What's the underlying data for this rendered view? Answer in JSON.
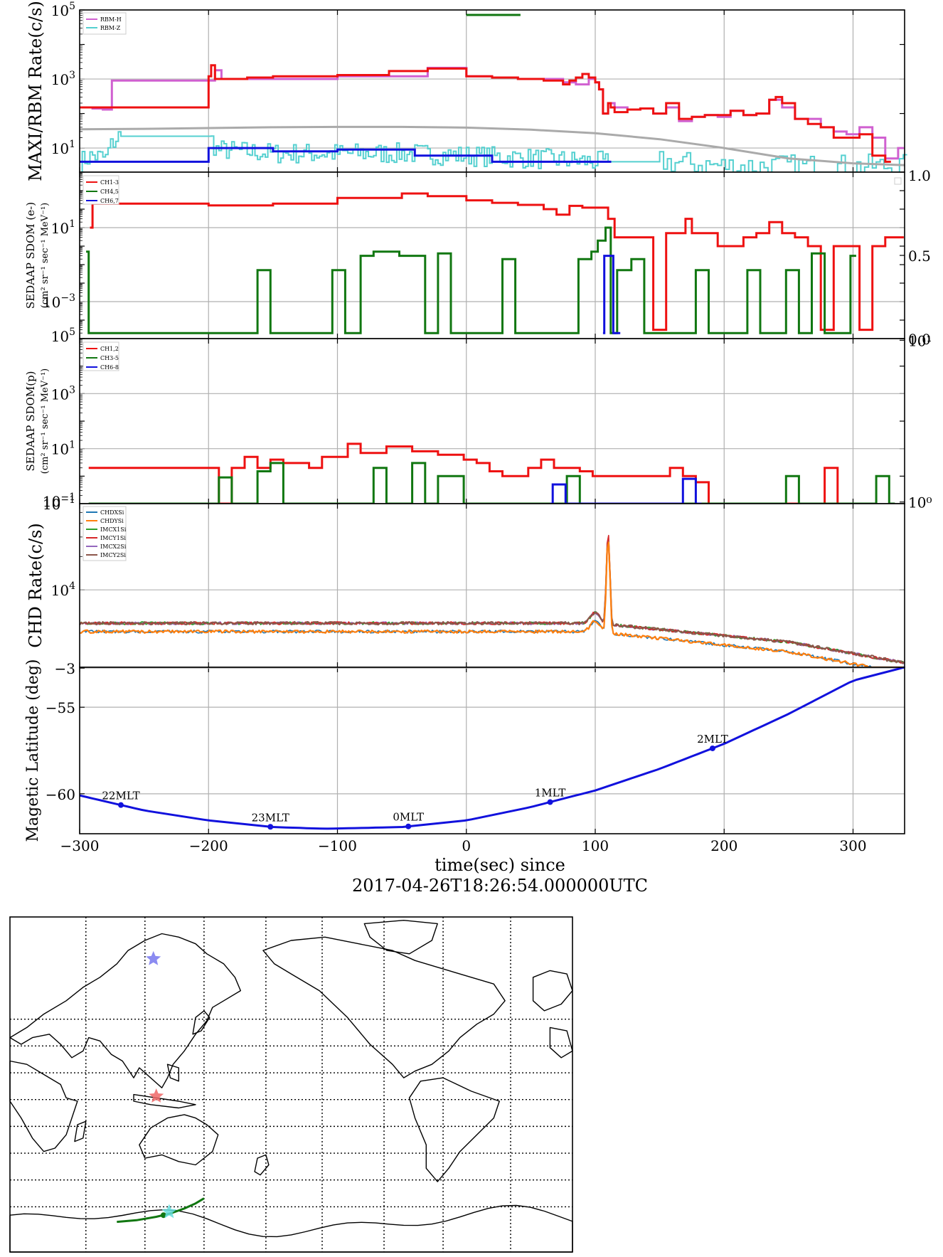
{
  "x_axis": {
    "range": [
      -300,
      340
    ],
    "ticks": [
      -300,
      -200,
      -100,
      0,
      100,
      200,
      300
    ],
    "tick_labels": [
      "−300",
      "−200",
      "−100",
      "0",
      "100",
      "200",
      "300"
    ],
    "label": "time(sec) since",
    "label2": "2017-04-26T18:26:54.000000UTC"
  },
  "colors": {
    "red": "#ee1111",
    "green": "#117711",
    "blue": "#1111dd",
    "violet": "#d060d0",
    "cyan": "#55d0d0",
    "gray": "#aaaaaa",
    "grid": "#b0b0b0"
  },
  "chart_data": [
    {
      "name": "rbm",
      "type": "line",
      "ylabel": "MAXI/RBM Rate(c/s)",
      "scale": "log",
      "ylim": [
        2,
        100000
      ],
      "yticks": [
        {
          "base": "10",
          "exp": "1"
        },
        {
          "base": "10",
          "exp": "3"
        },
        {
          "base": "10",
          "exp": "5"
        }
      ],
      "right_tick_label": "1.0",
      "legend": [
        "RBM-H",
        "RBM-Z"
      ],
      "bar": {
        "x": [
          0,
          42
        ],
        "color": "green"
      },
      "series": [
        {
          "name": "RBM-H",
          "color": "violet",
          "x": [
            -300,
            -290,
            -280,
            -282,
            -280,
            -275,
            -270,
            -250,
            -200,
            -195,
            -190,
            -100,
            -30,
            0,
            20,
            40,
            60,
            75,
            85,
            95,
            100,
            103,
            106,
            110,
            115,
            125,
            135,
            145,
            155,
            165,
            175,
            185,
            195,
            205,
            215,
            225,
            235,
            245,
            255,
            265,
            275,
            285,
            295,
            305,
            315,
            325,
            335
          ],
          "y": [
            150,
            140,
            130,
            150,
            130,
            900,
            900,
            900,
            900,
            1800,
            1000,
            1200,
            2100,
            1200,
            1100,
            1000,
            1000,
            800,
            700,
            1000,
            800,
            500,
            100,
            200,
            150,
            130,
            140,
            100,
            150,
            60,
            80,
            90,
            80,
            120,
            90,
            100,
            250,
            150,
            70,
            70,
            40,
            30,
            25,
            40,
            20,
            5,
            10
          ]
        },
        {
          "name": "RBM-Z",
          "color": "cyan",
          "noise": true,
          "x": [
            -300,
            -290,
            -280,
            -270,
            -250,
            -200,
            -195,
            -150,
            -100,
            -50,
            0,
            50,
            100,
            150,
            200,
            250,
            300,
            340
          ],
          "y": [
            4,
            6,
            5,
            22,
            22,
            22,
            9,
            7,
            7,
            7,
            6,
            5,
            4,
            4,
            3,
            3,
            3,
            3
          ]
        },
        {
          "name": "",
          "color": "red",
          "x": [
            -300,
            -205,
            -200,
            -198,
            -195,
            -190,
            -170,
            -150,
            -100,
            -60,
            -30,
            0,
            20,
            40,
            60,
            75,
            80,
            85,
            90,
            95,
            100,
            103,
            106,
            110,
            112,
            115,
            125,
            135,
            145,
            155,
            165,
            175,
            185,
            195,
            205,
            215,
            225,
            235,
            240,
            245,
            255,
            265,
            275,
            285,
            295,
            305,
            315,
            325
          ],
          "y": [
            150,
            150,
            1200,
            2500,
            1000,
            1000,
            1100,
            1200,
            1300,
            1700,
            2000,
            1200,
            1100,
            1000,
            900,
            700,
            900,
            1100,
            1400,
            1100,
            800,
            500,
            100,
            200,
            150,
            110,
            130,
            140,
            100,
            200,
            70,
            80,
            90,
            90,
            120,
            90,
            100,
            250,
            300,
            200,
            70,
            50,
            40,
            20,
            20,
            25,
            6,
            4
          ]
        },
        {
          "name": "",
          "color": "blue",
          "x": [
            -300,
            -205,
            -200,
            -150,
            -100,
            -50,
            -40,
            0,
            20,
            60,
            100,
            108
          ],
          "y": [
            4,
            4,
            10,
            8,
            9,
            9,
            6,
            6,
            4,
            4,
            4,
            4
          ]
        },
        {
          "name": "",
          "color": "gray",
          "x": [
            -300,
            -250,
            -200,
            -150,
            -100,
            -50,
            0,
            50,
            100,
            150,
            200,
            250,
            300,
            340
          ],
          "y": [
            35,
            36,
            38,
            40,
            41,
            41,
            39,
            34,
            27,
            18,
            10,
            5,
            3.6,
            3.2
          ]
        }
      ]
    },
    {
      "name": "sedaap-e",
      "type": "line",
      "ylabel": "SEDAAP SDOM (e-)",
      "ylabel2": "(cm² sr⁻¹ sec⁻¹ MeV⁻¹)",
      "scale": "log",
      "ylim": [
        1e-05,
        10000
      ],
      "yticks": [
        {
          "base": "10",
          "exp": "−3"
        },
        {
          "base": "10",
          "exp": "1"
        }
      ],
      "corner_label": {
        "base": "10",
        "exp": "5"
      },
      "right_ticks": [
        {
          "frac": 0.0,
          "label": "0.0"
        },
        {
          "frac": 0.5,
          "label": "0.5"
        }
      ],
      "legend": [
        "CH1-3",
        "CH4,5",
        "CH6,7"
      ],
      "series": [
        {
          "name": "CH1-3",
          "color": "red",
          "x": [
            -292,
            -290,
            -200,
            -150,
            -100,
            -50,
            -30,
            0,
            20,
            40,
            60,
            70,
            80,
            90,
            100,
            110,
            115,
            125,
            135,
            145,
            155,
            165,
            170,
            175,
            185,
            195,
            205,
            215,
            225,
            235,
            245,
            255,
            265,
            275,
            285,
            295,
            305,
            315,
            325,
            335
          ],
          "y": [
            10,
            200,
            160,
            200,
            400,
            700,
            500,
            300,
            220,
            170,
            100,
            50,
            150,
            120,
            120,
            30,
            3,
            3,
            3,
            3e-05,
            5,
            5,
            30,
            5,
            5,
            1,
            1,
            3,
            5,
            20,
            5,
            3,
            1,
            3e-05,
            1,
            1,
            3e-05,
            1,
            3,
            3
          ]
        },
        {
          "name": "CH4,5",
          "color": "green",
          "x": [
            -295,
            -293,
            -162,
            -152,
            -104,
            -94,
            -82,
            -72,
            -52,
            -32,
            -22,
            -12,
            28,
            38,
            87,
            97,
            102,
            108,
            112,
            117,
            128,
            138,
            178,
            188,
            218,
            228,
            248,
            258,
            268,
            278,
            298
          ],
          "y": [
            0.5,
            2e-05,
            0.05,
            2e-05,
            0.05,
            2e-05,
            0.3,
            0.5,
            0.3,
            2e-05,
            0.4,
            2e-05,
            0.2,
            2e-05,
            0.2,
            0.5,
            2,
            10,
            2e-05,
            0.05,
            0.2,
            2e-05,
            0.05,
            2e-05,
            0.05,
            2e-05,
            0.05,
            2e-05,
            0.4,
            2e-05,
            0.3
          ]
        },
        {
          "name": "CH6,7",
          "color": "blue",
          "x": [
            106,
            107,
            114,
            115
          ],
          "y": [
            2e-05,
            0.3,
            2e-05,
            2e-05
          ]
        }
      ]
    },
    {
      "name": "sedaap-p",
      "type": "line",
      "ylabel": "SEDAAP SDOM(p)",
      "ylabel2": "(cm² sr⁻¹ sec⁻¹ MeV⁻¹)",
      "scale": "log",
      "ylim": [
        0.1,
        100000
      ],
      "yticks": [
        {
          "base": "10",
          "exp": "−1"
        },
        {
          "base": "10",
          "exp": "1"
        },
        {
          "base": "10",
          "exp": "3"
        }
      ],
      "corner_label": {
        "base": "10",
        "exp": "−1"
      },
      "right_ticks": [
        {
          "frac": 0.01,
          "label": "10⁰"
        },
        {
          "frac": 0.99,
          "label": "10¹"
        }
      ],
      "legend": [
        "CH1,2",
        "CH3-5",
        "CH6-8"
      ],
      "series": [
        {
          "name": "CH1,2",
          "color": "red",
          "x": [
            -293,
            -192,
            -182,
            -172,
            -162,
            -152,
            -142,
            -122,
            -112,
            -92,
            -82,
            -62,
            -42,
            -22,
            -2,
            8,
            18,
            28,
            38,
            48,
            58,
            68,
            78,
            88,
            98,
            148,
            158,
            168,
            178,
            188,
            278,
            288
          ],
          "y": [
            2,
            0.1,
            2,
            5,
            2,
            4,
            3,
            2,
            5,
            15,
            7,
            12,
            8,
            6,
            4,
            3,
            1.5,
            1,
            1,
            2,
            4,
            2,
            2,
            1.5,
            1,
            1,
            2,
            1,
            0.6,
            0.1,
            2,
            0.1
          ]
        },
        {
          "name": "CH3-5",
          "color": "green",
          "x": [
            -293,
            -192,
            -182,
            -172,
            -162,
            -152,
            -142,
            -102,
            -92,
            -82,
            -72,
            -62,
            -42,
            -32,
            -22,
            -2,
            78,
            88,
            98,
            248,
            258,
            318,
            328
          ],
          "y": [
            0.1,
            0.9,
            0.1,
            0.1,
            1.5,
            3,
            0.1,
            0.1,
            0.1,
            0.1,
            2,
            0.1,
            3,
            0.1,
            1,
            0.1,
            1,
            0.1,
            0.1,
            1,
            0.1,
            1,
            0.1
          ]
        },
        {
          "name": "CH6-8",
          "color": "blue",
          "x": [
            65,
            67,
            77,
            158,
            168,
            178
          ],
          "y": [
            0.1,
            0.5,
            0.1,
            0.1,
            0.8,
            0.1
          ]
        }
      ]
    },
    {
      "name": "chd",
      "type": "line",
      "ylabel": "CHD Rate(c/s)",
      "scale": "log",
      "ylim": [
        2000,
        60000
      ],
      "yticks": [
        {
          "base": "10",
          "exp": "4"
        }
      ],
      "legend": [
        "CHDXSi",
        "CHDYSi",
        "IMCX1Si",
        "IMCY1Si",
        "IMCX2Si",
        "IMCY2Si"
      ],
      "series": [
        {
          "name": "CHDXSi",
          "color": "#1f77b4",
          "base": "low",
          "lw": 1.6
        },
        {
          "name": "CHDYSi",
          "color": "#ff7f0e",
          "base": "low",
          "lw": 2.2
        },
        {
          "name": "IMCX1Si",
          "color": "#2ca02c",
          "base": "high",
          "lw": 1.6
        },
        {
          "name": "IMCY1Si",
          "color": "#d62728",
          "base": "high",
          "lw": 1.6
        },
        {
          "name": "IMCX2Si",
          "color": "#9467bd",
          "base": "high",
          "lw": 1.6
        },
        {
          "name": "IMCY2Si",
          "color": "#8c564b",
          "base": "high",
          "lw": 2.2
        }
      ],
      "peak": {
        "x": 110,
        "y": 33000
      }
    },
    {
      "name": "maglat",
      "type": "line",
      "ylabel": "Magetic Latitude  (deg)",
      "yticks": [
        {
          "value": "−60",
          "frac": 0.24
        },
        {
          "value": "−55",
          "frac": 0.76
        },
        {
          "value": "−3",
          "frac": 0.995
        }
      ],
      "series": [
        {
          "name": "",
          "color": "blue",
          "x": [
            -300,
            -250,
            -200,
            -150,
            -110,
            -50,
            0,
            50,
            100,
            150,
            200,
            250,
            300,
            340
          ],
          "frac": [
            0.23,
            0.14,
            0.08,
            0.04,
            0.03,
            0.04,
            0.08,
            0.16,
            0.26,
            0.39,
            0.54,
            0.72,
            0.92,
            1.0
          ]
        }
      ],
      "points": [
        {
          "x": -268,
          "frac": 0.16,
          "label": "22MLT"
        },
        {
          "x": -152,
          "frac": 0.04,
          "label": "23MLT"
        },
        {
          "x": -45,
          "frac": 0.05,
          "label": "0MLT"
        },
        {
          "x": 65,
          "frac": 0.21,
          "label": "1MLT"
        },
        {
          "x": 191,
          "frac": 0.52,
          "label": "2MLT"
        }
      ]
    }
  ],
  "map": {
    "icons": [
      "world-coastline",
      "star-markers",
      "orbit-track"
    ],
    "stars": [
      {
        "color": "#7777ee"
      },
      {
        "color": "#ee6666"
      },
      {
        "color": "#66dddd"
      }
    ],
    "track_color": "#117711"
  }
}
